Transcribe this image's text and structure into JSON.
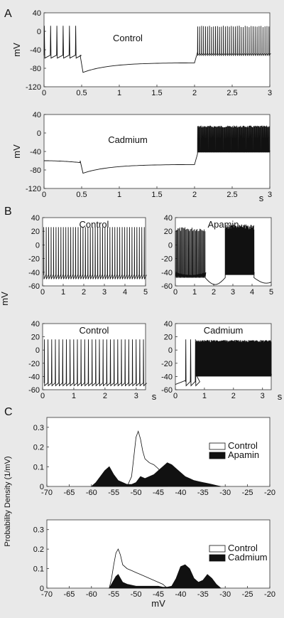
{
  "figure": {
    "panel_labels": [
      "A",
      "B",
      "C"
    ]
  },
  "chart_data": [
    {
      "id": "A1",
      "type": "line",
      "title": "Control",
      "ylabel": "mV",
      "xlabel": "",
      "xlim": [
        0,
        3
      ],
      "ylim": [
        -120,
        40
      ],
      "xticks": [
        "0",
        "0.5",
        "1",
        "1.5",
        "2",
        "2.5",
        "3"
      ],
      "yticks": [
        "40",
        "0",
        "-40",
        "-80",
        "-120"
      ],
      "trace": {
        "baseline_before": -52,
        "hyperpol_min": -90,
        "hyperpol_end": -68,
        "step_on": 0.5,
        "step_off": 2.0,
        "spike_peak": 12
      }
    },
    {
      "id": "A2",
      "type": "line",
      "title": "Cadmium",
      "ylabel": "mV",
      "xlabel": "s",
      "xlim": [
        0,
        3
      ],
      "ylim": [
        -120,
        40
      ],
      "xticks": [
        "0",
        "0.5",
        "1",
        "1.5",
        "2",
        "2.5",
        "3"
      ],
      "yticks": [
        "40",
        "0",
        "-40",
        "-80",
        "-120"
      ],
      "trace": {
        "baseline_before": -60,
        "hyperpol_min": -88,
        "hyperpol_end": -68,
        "step_on": 0.5,
        "step_off": 2.0,
        "spike_peak": 16
      }
    },
    {
      "id": "B1",
      "type": "line",
      "title": "Control",
      "ylabel": "mV",
      "xlabel": "",
      "xlim": [
        0,
        5
      ],
      "ylim": [
        -60,
        40
      ],
      "xticks": [
        "0",
        "1",
        "2",
        "3",
        "4",
        "5"
      ],
      "yticks": [
        "40",
        "20",
        "0",
        "-20",
        "-40",
        "-60"
      ]
    },
    {
      "id": "B2",
      "type": "line",
      "title": "Apamin",
      "ylabel": "",
      "xlabel": "",
      "xlim": [
        0,
        5
      ],
      "ylim": [
        -60,
        40
      ],
      "xticks": [
        "0",
        "1",
        "2",
        "3",
        "4",
        "5"
      ],
      "yticks": [
        "40",
        "20",
        "0",
        "-20",
        "-40",
        "-60"
      ]
    },
    {
      "id": "B3",
      "type": "line",
      "title": "Control",
      "ylabel": "",
      "xlabel": "s",
      "xlim": [
        0,
        3.3
      ],
      "ylim": [
        -60,
        40
      ],
      "xticks": [
        "0",
        "1",
        "2",
        "3"
      ],
      "yticks": [
        "40",
        "20",
        "0",
        "-20",
        "-40",
        "-60"
      ]
    },
    {
      "id": "B4",
      "type": "line",
      "title": "Cadmium",
      "ylabel": "",
      "xlabel": "s",
      "xlim": [
        0,
        3.3
      ],
      "ylim": [
        -60,
        40
      ],
      "xticks": [
        "0",
        "1",
        "2",
        "3"
      ],
      "yticks": [
        "40",
        "20",
        "0",
        "-20",
        "-40",
        "-60"
      ]
    },
    {
      "id": "C1",
      "type": "area",
      "title": "",
      "xlabel": "",
      "ylabel": "Probability Density (1/mV)",
      "xlim": [
        -70,
        -20
      ],
      "ylim": [
        0,
        0.35
      ],
      "xticks": [
        "-70",
        "-65",
        "-60",
        "-55",
        "-50",
        "-45",
        "-40",
        "-35",
        "-30",
        "-25",
        "-20"
      ],
      "yticks": [
        "0.3",
        "0.2",
        "0.1",
        "0"
      ],
      "legend": [
        "Control",
        "Apamin"
      ],
      "series": [
        {
          "name": "Control",
          "x": [
            -52,
            -51,
            -50.5,
            -50,
            -49.5,
            -49,
            -48.5,
            -48,
            -47,
            -46,
            -45,
            -44,
            -43
          ],
          "y": [
            0,
            0.05,
            0.15,
            0.25,
            0.28,
            0.24,
            0.18,
            0.14,
            0.12,
            0.11,
            0.09,
            0.06,
            0
          ]
        },
        {
          "name": "Apamin",
          "x": [
            -60,
            -59,
            -58,
            -57,
            -56,
            -55,
            -54,
            -53,
            -52,
            -51,
            -50,
            -49,
            -48,
            -47,
            -46,
            -45,
            -44,
            -43,
            -42,
            -41,
            -40,
            -39,
            -38,
            -37,
            -36,
            -35,
            -34,
            -33,
            -32,
            -31
          ],
          "y": [
            0,
            0.02,
            0.05,
            0.08,
            0.1,
            0.06,
            0.03,
            0.02,
            0.01,
            0.01,
            0.02,
            0.05,
            0.04,
            0.05,
            0.06,
            0.08,
            0.1,
            0.12,
            0.11,
            0.09,
            0.07,
            0.05,
            0.04,
            0.03,
            0.025,
            0.02,
            0.015,
            0.01,
            0.005,
            0
          ]
        }
      ]
    },
    {
      "id": "C2",
      "type": "area",
      "title": "",
      "xlabel": "mV",
      "ylabel": "",
      "xlim": [
        -70,
        -20
      ],
      "ylim": [
        0,
        0.35
      ],
      "xticks": [
        "-70",
        "-65",
        "-60",
        "-55",
        "-50",
        "-45",
        "-40",
        "-35",
        "-30",
        "-25",
        "-20"
      ],
      "yticks": [
        "0.3",
        "0.2",
        "0.1",
        "0"
      ],
      "legend": [
        "Control",
        "Cadmium"
      ],
      "series": [
        {
          "name": "Control",
          "x": [
            -56,
            -55.5,
            -55,
            -54.5,
            -54,
            -53.5,
            -53,
            -52,
            -51,
            -50,
            -49,
            -48,
            -47,
            -46,
            -45,
            -44,
            -43
          ],
          "y": [
            0,
            0.05,
            0.12,
            0.18,
            0.2,
            0.17,
            0.12,
            0.1,
            0.09,
            0.08,
            0.07,
            0.06,
            0.05,
            0.04,
            0.03,
            0.02,
            0
          ]
        },
        {
          "name": "Cadmium",
          "x": [
            -56,
            -55,
            -54.5,
            -54,
            -53.5,
            -53,
            -52,
            -51,
            -50,
            -49,
            -48,
            -47,
            -46,
            -45,
            -44,
            -43,
            -42,
            -41,
            -40,
            -39,
            -38,
            -37,
            -36,
            -35,
            -34,
            -33,
            -32,
            -31
          ],
          "y": [
            0,
            0.04,
            0.06,
            0.07,
            0.05,
            0.03,
            0.02,
            0.015,
            0.01,
            0.01,
            0.01,
            0.01,
            0.01,
            0.01,
            0.005,
            0.005,
            0.01,
            0.05,
            0.11,
            0.12,
            0.1,
            0.05,
            0.03,
            0.04,
            0.07,
            0.05,
            0.02,
            0
          ]
        }
      ]
    }
  ]
}
